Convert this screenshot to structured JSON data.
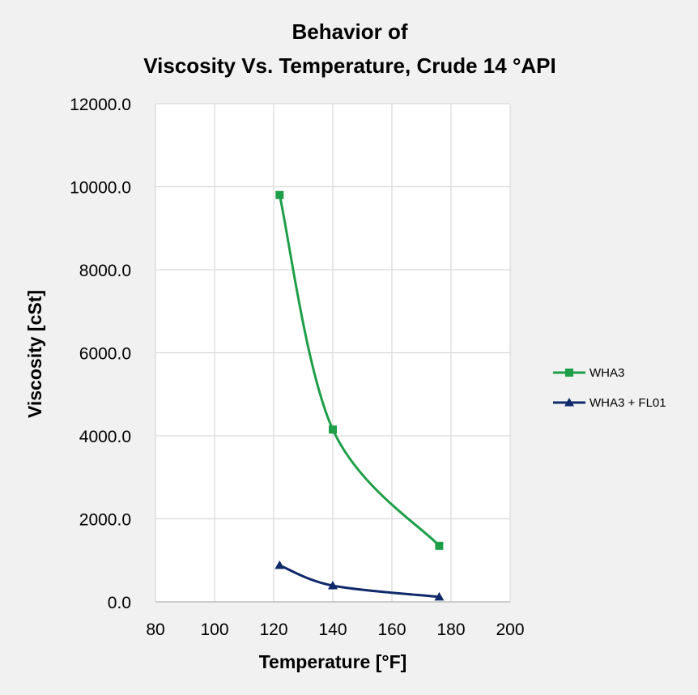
{
  "chart_data": {
    "type": "line",
    "title_lines": [
      "Behavior of",
      "Viscosity Vs. Temperature, Crude 14 °API"
    ],
    "xlabel": "Temperature [°F]",
    "ylabel": "Viscosity [cSt]",
    "xlim": [
      80,
      200
    ],
    "ylim": [
      0,
      12000
    ],
    "x_ticks": [
      "80",
      "100",
      "120",
      "140",
      "160",
      "180",
      "200"
    ],
    "y_ticks": [
      "0.0",
      "2000.0",
      "4000.0",
      "6000.0",
      "8000.0",
      "10000.0",
      "12000.0"
    ],
    "grid": true,
    "legend_position": "right",
    "series": [
      {
        "name": "WHA3",
        "color": "#1e9e48",
        "marker": "square",
        "x": [
          122,
          140,
          176
        ],
        "y": [
          9800,
          4150,
          1350
        ]
      },
      {
        "name": "WHA3 + FL01",
        "color": "#0f2a6b",
        "marker": "triangle",
        "x": [
          122,
          140,
          176
        ],
        "y": [
          880,
          390,
          120
        ]
      }
    ]
  }
}
